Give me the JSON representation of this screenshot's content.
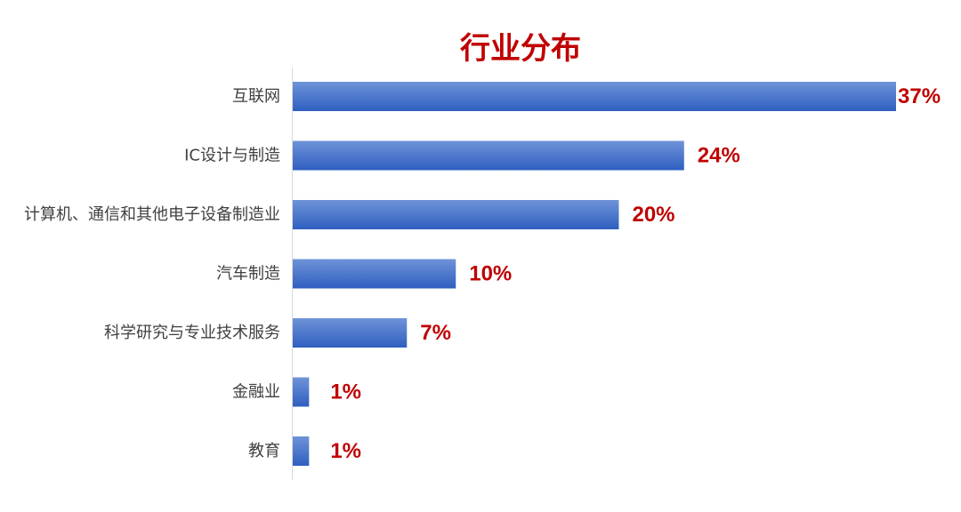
{
  "chart_data": {
    "type": "bar",
    "orientation": "horizontal",
    "title": "行业分布",
    "categories": [
      "互联网",
      "IC设计与制造",
      "计算机、通信和其他电子设备制造业",
      "汽车制造",
      "科学研究与专业技术服务",
      "金融业",
      "教育"
    ],
    "values": [
      37,
      24,
      20,
      10,
      7,
      1,
      1
    ],
    "value_labels": [
      "37%",
      "24%",
      "20%",
      "10%",
      "7%",
      "1%",
      "1%"
    ],
    "unit": "%",
    "xlim": [
      0,
      37
    ],
    "grid": false,
    "legend": "none",
    "colors": {
      "bar_top": "#6f93d8",
      "bar_bottom": "#2e5fc0",
      "title": "#c00000",
      "value_label": "#c00000",
      "category_label": "#404040",
      "axis": "#d9d9d9"
    }
  }
}
